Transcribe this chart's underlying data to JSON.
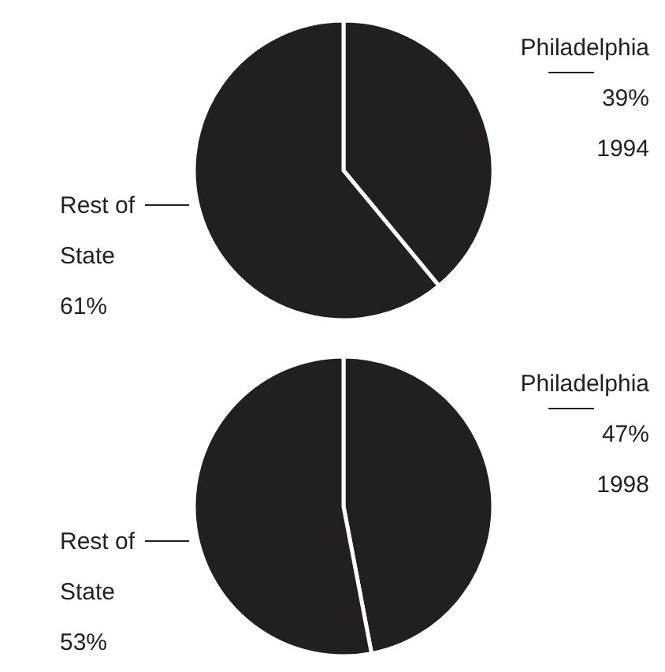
{
  "chart_data": [
    {
      "type": "pie",
      "categories": [
        "Philadelphia",
        "Rest of State"
      ],
      "values": [
        39,
        61
      ],
      "colors": [
        "#231f20",
        "#231f20"
      ],
      "value_labels": [
        "39%",
        "61%"
      ],
      "annotations": [
        "1994"
      ],
      "legend": false
    },
    {
      "type": "pie",
      "categories": [
        "Philadelphia",
        "Rest of State"
      ],
      "values": [
        47,
        53
      ],
      "colors": [
        "#231f20",
        "#231f20"
      ],
      "value_labels": [
        "47%",
        "53%"
      ],
      "annotations": [
        "1998"
      ],
      "legend": false
    }
  ]
}
